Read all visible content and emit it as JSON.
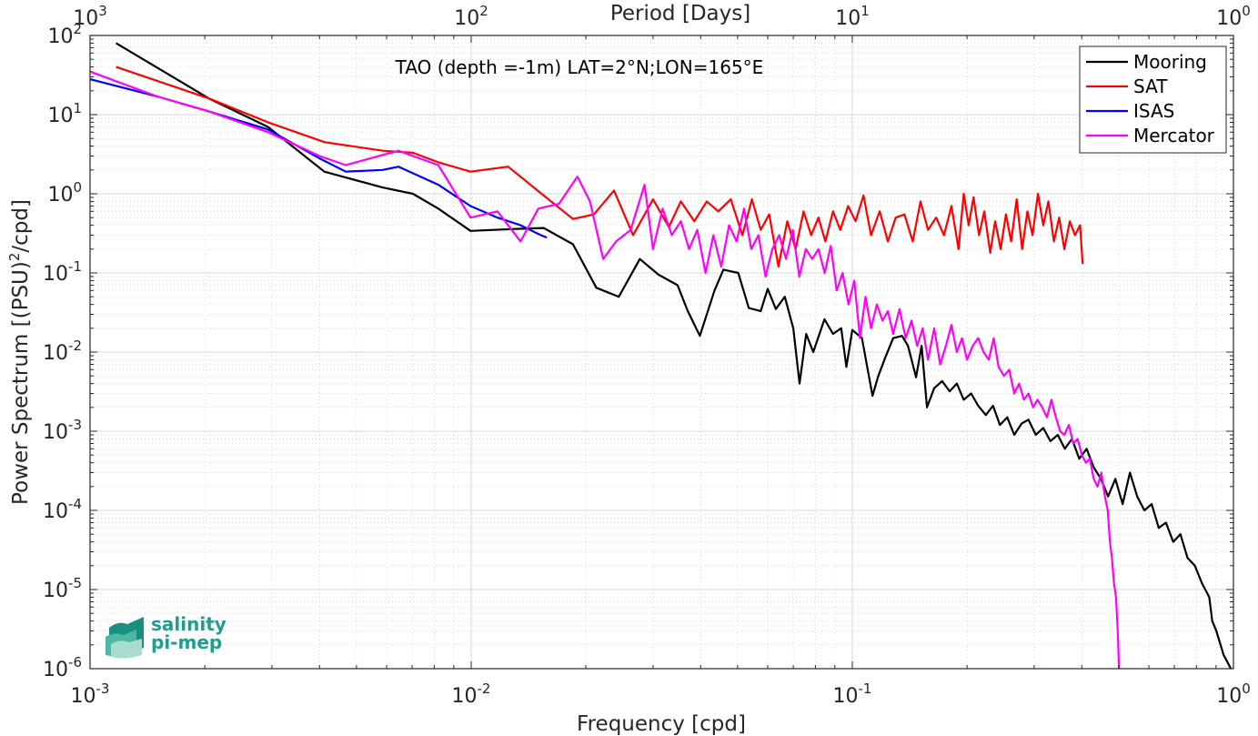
{
  "chart_data": {
    "type": "line",
    "title": "TAO (depth =-1m) LAT=2°N;LON=165°E",
    "xlabel": "Frequency [cpd]",
    "ylabel": "Power Spectrum [(PSU)²/cpd]",
    "ylabel_main": "Power Spectrum [(PSU)",
    "ylabel_sup": "2",
    "ylabel_tail": "/cpd]",
    "x2label": "Period [Days]",
    "xscale": "log",
    "yscale": "log",
    "xlim": [
      0.001,
      1
    ],
    "ylim": [
      1e-06,
      100
    ],
    "grid": true,
    "minor_grid": true,
    "legend_position": "top-right",
    "x_tick_labels": [
      {
        "value": 0.001,
        "base": "10",
        "exp": "-3"
      },
      {
        "value": 0.01,
        "base": "10",
        "exp": "-2"
      },
      {
        "value": 0.1,
        "base": "10",
        "exp": "-1"
      },
      {
        "value": 1,
        "base": "10",
        "exp": "0"
      }
    ],
    "y_tick_labels": [
      {
        "value": 1e-06,
        "base": "10",
        "exp": "-6"
      },
      {
        "value": 1e-05,
        "base": "10",
        "exp": "-5"
      },
      {
        "value": 0.0001,
        "base": "10",
        "exp": "-4"
      },
      {
        "value": 0.001,
        "base": "10",
        "exp": "-3"
      },
      {
        "value": 0.01,
        "base": "10",
        "exp": "-2"
      },
      {
        "value": 0.1,
        "base": "10",
        "exp": "-1"
      },
      {
        "value": 1,
        "base": "10",
        "exp": "0"
      },
      {
        "value": 10,
        "base": "10",
        "exp": "1"
      },
      {
        "value": 100,
        "base": "10",
        "exp": "2"
      }
    ],
    "period_tick_labels": [
      {
        "period": 1000,
        "base": "10",
        "exp": "3"
      },
      {
        "period": 100,
        "base": "10",
        "exp": "2"
      },
      {
        "period": 10,
        "base": "10",
        "exp": "1"
      },
      {
        "period": 1,
        "base": "10",
        "exp": "0"
      }
    ],
    "series": [
      {
        "name": "Mooring",
        "color": "#000000",
        "points": [
          [
            0.00117,
            80
          ],
          [
            0.00205,
            16
          ],
          [
            0.00293,
            7
          ],
          [
            0.00412,
            1.9
          ],
          [
            0.00586,
            1.2
          ],
          [
            0.00703,
            1.0
          ],
          [
            0.0082,
            0.65
          ],
          [
            0.00996,
            0.34
          ],
          [
            0.0131,
            0.36
          ],
          [
            0.0155,
            0.37
          ],
          [
            0.0185,
            0.23
          ],
          [
            0.0213,
            0.065
          ],
          [
            0.0244,
            0.05
          ],
          [
            0.0277,
            0.15
          ],
          [
            0.031,
            0.095
          ],
          [
            0.0348,
            0.07
          ],
          [
            0.037,
            0.033
          ],
          [
            0.0398,
            0.016
          ],
          [
            0.0435,
            0.06
          ],
          [
            0.0459,
            0.11
          ],
          [
            0.0502,
            0.1
          ],
          [
            0.0535,
            0.036
          ],
          [
            0.0575,
            0.033
          ],
          [
            0.06,
            0.063
          ],
          [
            0.063,
            0.035
          ],
          [
            0.0665,
            0.05
          ],
          [
            0.07,
            0.02
          ],
          [
            0.0727,
            0.004
          ],
          [
            0.0757,
            0.017
          ],
          [
            0.079,
            0.01
          ],
          [
            0.0845,
            0.026
          ],
          [
            0.089,
            0.017
          ],
          [
            0.0935,
            0.02
          ],
          [
            0.0965,
            0.0065
          ],
          [
            0.1,
            0.019
          ],
          [
            0.106,
            0.015
          ],
          [
            0.113,
            0.0028
          ],
          [
            0.117,
            0.005
          ],
          [
            0.122,
            0.0085
          ],
          [
            0.128,
            0.015
          ],
          [
            0.135,
            0.016
          ],
          [
            0.14,
            0.012
          ],
          [
            0.147,
            0.0048
          ],
          [
            0.152,
            0.012
          ],
          [
            0.157,
            0.002
          ],
          [
            0.164,
            0.0035
          ],
          [
            0.172,
            0.0043
          ],
          [
            0.18,
            0.0032
          ],
          [
            0.188,
            0.004
          ],
          [
            0.196,
            0.0025
          ],
          [
            0.205,
            0.003
          ],
          [
            0.214,
            0.0021
          ],
          [
            0.224,
            0.0016
          ],
          [
            0.234,
            0.0021
          ],
          [
            0.244,
            0.0012
          ],
          [
            0.255,
            0.0015
          ],
          [
            0.266,
            0.0009
          ],
          [
            0.278,
            0.00125
          ],
          [
            0.29,
            0.0014
          ],
          [
            0.303,
            0.0009
          ],
          [
            0.317,
            0.0011
          ],
          [
            0.331,
            0.00075
          ],
          [
            0.346,
            0.0009
          ],
          [
            0.361,
            0.0006
          ],
          [
            0.377,
            0.0008
          ],
          [
            0.394,
            0.00045
          ],
          [
            0.412,
            0.0006
          ],
          [
            0.43,
            0.00035
          ],
          [
            0.449,
            0.00025
          ],
          [
            0.469,
            0.00015
          ],
          [
            0.49,
            0.00025
          ],
          [
            0.512,
            0.00012
          ],
          [
            0.535,
            0.0003
          ],
          [
            0.559,
            0.00015
          ],
          [
            0.584,
            0.0001
          ],
          [
            0.61,
            0.00012
          ],
          [
            0.637,
            6e-05
          ],
          [
            0.665,
            7e-05
          ],
          [
            0.695,
            4e-05
          ],
          [
            0.726,
            5e-05
          ],
          [
            0.758,
            2.5e-05
          ],
          [
            0.792,
            2e-05
          ],
          [
            0.827,
            1.2e-05
          ],
          [
            0.864,
            8e-06
          ],
          [
            0.88,
            4e-06
          ],
          [
            0.902,
            3e-06
          ],
          [
            0.942,
            1.5e-06
          ],
          [
            0.985,
            1e-06
          ]
        ]
      },
      {
        "name": "SAT",
        "color": "#ff0000",
        "points": [
          [
            0.00117,
            40
          ],
          [
            0.00205,
            16
          ],
          [
            0.00293,
            8
          ],
          [
            0.00412,
            4.5
          ],
          [
            0.00586,
            3.5
          ],
          [
            0.00703,
            3.3
          ],
          [
            0.0082,
            2.5
          ],
          [
            0.00996,
            1.9
          ],
          [
            0.0125,
            2.2
          ],
          [
            0.0155,
            0.95
          ],
          [
            0.0185,
            0.48
          ],
          [
            0.021,
            0.55
          ],
          [
            0.0237,
            1.1
          ],
          [
            0.0266,
            0.3
          ],
          [
            0.03,
            0.85
          ],
          [
            0.033,
            0.38
          ],
          [
            0.0355,
            0.8
          ],
          [
            0.0385,
            0.45
          ],
          [
            0.0415,
            0.8
          ],
          [
            0.0445,
            0.6
          ],
          [
            0.048,
            0.85
          ],
          [
            0.0515,
            0.3
          ],
          [
            0.0545,
            0.85
          ],
          [
            0.0575,
            0.35
          ],
          [
            0.0605,
            0.55
          ],
          [
            0.064,
            0.12
          ],
          [
            0.0675,
            0.45
          ],
          [
            0.071,
            0.2
          ],
          [
            0.0745,
            0.6
          ],
          [
            0.078,
            0.3
          ],
          [
            0.0815,
            0.5
          ],
          [
            0.085,
            0.25
          ],
          [
            0.089,
            0.6
          ],
          [
            0.093,
            0.35
          ],
          [
            0.0975,
            0.7
          ],
          [
            0.102,
            0.45
          ],
          [
            0.107,
            0.95
          ],
          [
            0.112,
            0.3
          ],
          [
            0.118,
            0.6
          ],
          [
            0.124,
            0.25
          ],
          [
            0.13,
            0.5
          ],
          [
            0.137,
            0.55
          ],
          [
            0.144,
            0.25
          ],
          [
            0.151,
            0.8
          ],
          [
            0.158,
            0.35
          ],
          [
            0.166,
            0.5
          ],
          [
            0.174,
            0.3
          ],
          [
            0.182,
            0.7
          ],
          [
            0.19,
            0.2
          ],
          [
            0.196,
            1.0
          ],
          [
            0.202,
            0.4
          ],
          [
            0.208,
            0.9
          ],
          [
            0.215,
            0.3
          ],
          [
            0.222,
            0.6
          ],
          [
            0.23,
            0.18
          ],
          [
            0.237,
            0.45
          ],
          [
            0.245,
            0.2
          ],
          [
            0.253,
            0.55
          ],
          [
            0.261,
            0.25
          ],
          [
            0.27,
            0.85
          ],
          [
            0.279,
            0.2
          ],
          [
            0.288,
            0.6
          ],
          [
            0.297,
            0.3
          ],
          [
            0.307,
            1.0
          ],
          [
            0.317,
            0.4
          ],
          [
            0.327,
            0.8
          ],
          [
            0.338,
            0.25
          ],
          [
            0.349,
            0.5
          ],
          [
            0.36,
            0.2
          ],
          [
            0.372,
            0.45
          ],
          [
            0.384,
            0.3
          ],
          [
            0.396,
            0.4
          ],
          [
            0.402,
            0.13
          ]
        ]
      },
      {
        "name": "ISAS",
        "color": "#0000ff",
        "points": [
          [
            0.001,
            28
          ],
          [
            0.0015,
            17
          ],
          [
            0.00205,
            11
          ],
          [
            0.00293,
            6.5
          ],
          [
            0.004,
            2.8
          ],
          [
            0.00469,
            1.9
          ],
          [
            0.00586,
            2.0
          ],
          [
            0.00645,
            2.2
          ],
          [
            0.0082,
            1.3
          ],
          [
            0.00996,
            0.7
          ],
          [
            0.01172,
            0.5
          ],
          [
            0.01348,
            0.4
          ],
          [
            0.01523,
            0.3
          ],
          [
            0.0158,
            0.28
          ]
        ]
      },
      {
        "name": "Mercator",
        "color": "#ff00ff",
        "points": [
          [
            0.001,
            35
          ],
          [
            0.0015,
            17
          ],
          [
            0.00205,
            11
          ],
          [
            0.00293,
            6
          ],
          [
            0.004,
            3
          ],
          [
            0.00469,
            2.3
          ],
          [
            0.00586,
            3.1
          ],
          [
            0.00645,
            3.5
          ],
          [
            0.0082,
            2.3
          ],
          [
            0.00996,
            0.5
          ],
          [
            0.01172,
            0.6
          ],
          [
            0.01348,
            0.25
          ],
          [
            0.015,
            0.65
          ],
          [
            0.017,
            0.75
          ],
          [
            0.019,
            1.65
          ],
          [
            0.0205,
            0.8
          ],
          [
            0.0222,
            0.15
          ],
          [
            0.024,
            0.25
          ],
          [
            0.0262,
            0.35
          ],
          [
            0.0285,
            1.3
          ],
          [
            0.03,
            0.2
          ],
          [
            0.0318,
            0.65
          ],
          [
            0.0336,
            0.3
          ],
          [
            0.0355,
            0.45
          ],
          [
            0.0373,
            0.2
          ],
          [
            0.0392,
            0.35
          ],
          [
            0.0412,
            0.1
          ],
          [
            0.0432,
            0.3
          ],
          [
            0.0453,
            0.12
          ],
          [
            0.0475,
            0.4
          ],
          [
            0.0497,
            0.25
          ],
          [
            0.052,
            0.65
          ],
          [
            0.0543,
            0.2
          ],
          [
            0.0567,
            0.3
          ],
          [
            0.0592,
            0.09
          ],
          [
            0.0617,
            0.2
          ],
          [
            0.0643,
            0.3
          ],
          [
            0.067,
            0.15
          ],
          [
            0.0698,
            0.35
          ],
          [
            0.0726,
            0.09
          ],
          [
            0.0755,
            0.2
          ],
          [
            0.0785,
            0.15
          ],
          [
            0.0815,
            0.2
          ],
          [
            0.0846,
            0.1
          ],
          [
            0.0878,
            0.22
          ],
          [
            0.091,
            0.06
          ],
          [
            0.0943,
            0.1
          ],
          [
            0.0977,
            0.04
          ],
          [
            0.1012,
            0.08
          ],
          [
            0.1047,
            0.015
          ],
          [
            0.1083,
            0.05
          ],
          [
            0.112,
            0.02
          ],
          [
            0.116,
            0.04
          ],
          [
            0.12,
            0.025
          ],
          [
            0.124,
            0.033
          ],
          [
            0.128,
            0.017
          ],
          [
            0.133,
            0.035
          ],
          [
            0.138,
            0.015
          ],
          [
            0.143,
            0.025
          ],
          [
            0.148,
            0.012
          ],
          [
            0.153,
            0.02
          ],
          [
            0.158,
            0.008
          ],
          [
            0.164,
            0.02
          ],
          [
            0.17,
            0.007
          ],
          [
            0.176,
            0.012
          ],
          [
            0.182,
            0.022
          ],
          [
            0.188,
            0.01
          ],
          [
            0.194,
            0.015
          ],
          [
            0.2,
            0.008
          ],
          [
            0.207,
            0.012
          ],
          [
            0.214,
            0.015
          ],
          [
            0.221,
            0.01
          ],
          [
            0.228,
            0.008
          ],
          [
            0.235,
            0.015
          ],
          [
            0.242,
            0.0065
          ],
          [
            0.25,
            0.005
          ],
          [
            0.258,
            0.006
          ],
          [
            0.266,
            0.003
          ],
          [
            0.274,
            0.004
          ],
          [
            0.282,
            0.0025
          ],
          [
            0.29,
            0.003
          ],
          [
            0.298,
            0.002
          ],
          [
            0.306,
            0.0025
          ],
          [
            0.315,
            0.002
          ],
          [
            0.324,
            0.0015
          ],
          [
            0.333,
            0.0025
          ],
          [
            0.342,
            0.0015
          ],
          [
            0.351,
            0.001
          ],
          [
            0.36,
            0.0009
          ],
          [
            0.37,
            0.0012
          ],
          [
            0.38,
            0.0007
          ],
          [
            0.39,
            0.0008
          ],
          [
            0.4,
            0.0005
          ],
          [
            0.41,
            0.0004
          ],
          [
            0.42,
            0.00045
          ],
          [
            0.43,
            0.00025
          ],
          [
            0.44,
            0.0002
          ],
          [
            0.45,
            0.0003
          ],
          [
            0.46,
            0.00015
          ],
          [
            0.468,
            0.0001
          ],
          [
            0.474,
            4e-05
          ],
          [
            0.48,
            2.5e-05
          ],
          [
            0.486,
            1.2e-05
          ],
          [
            0.492,
            8e-06
          ],
          [
            0.497,
            3e-06
          ],
          [
            0.501,
            1e-06
          ]
        ]
      }
    ]
  },
  "logo": {
    "line1": "salinity",
    "line2": "pi-mep"
  }
}
